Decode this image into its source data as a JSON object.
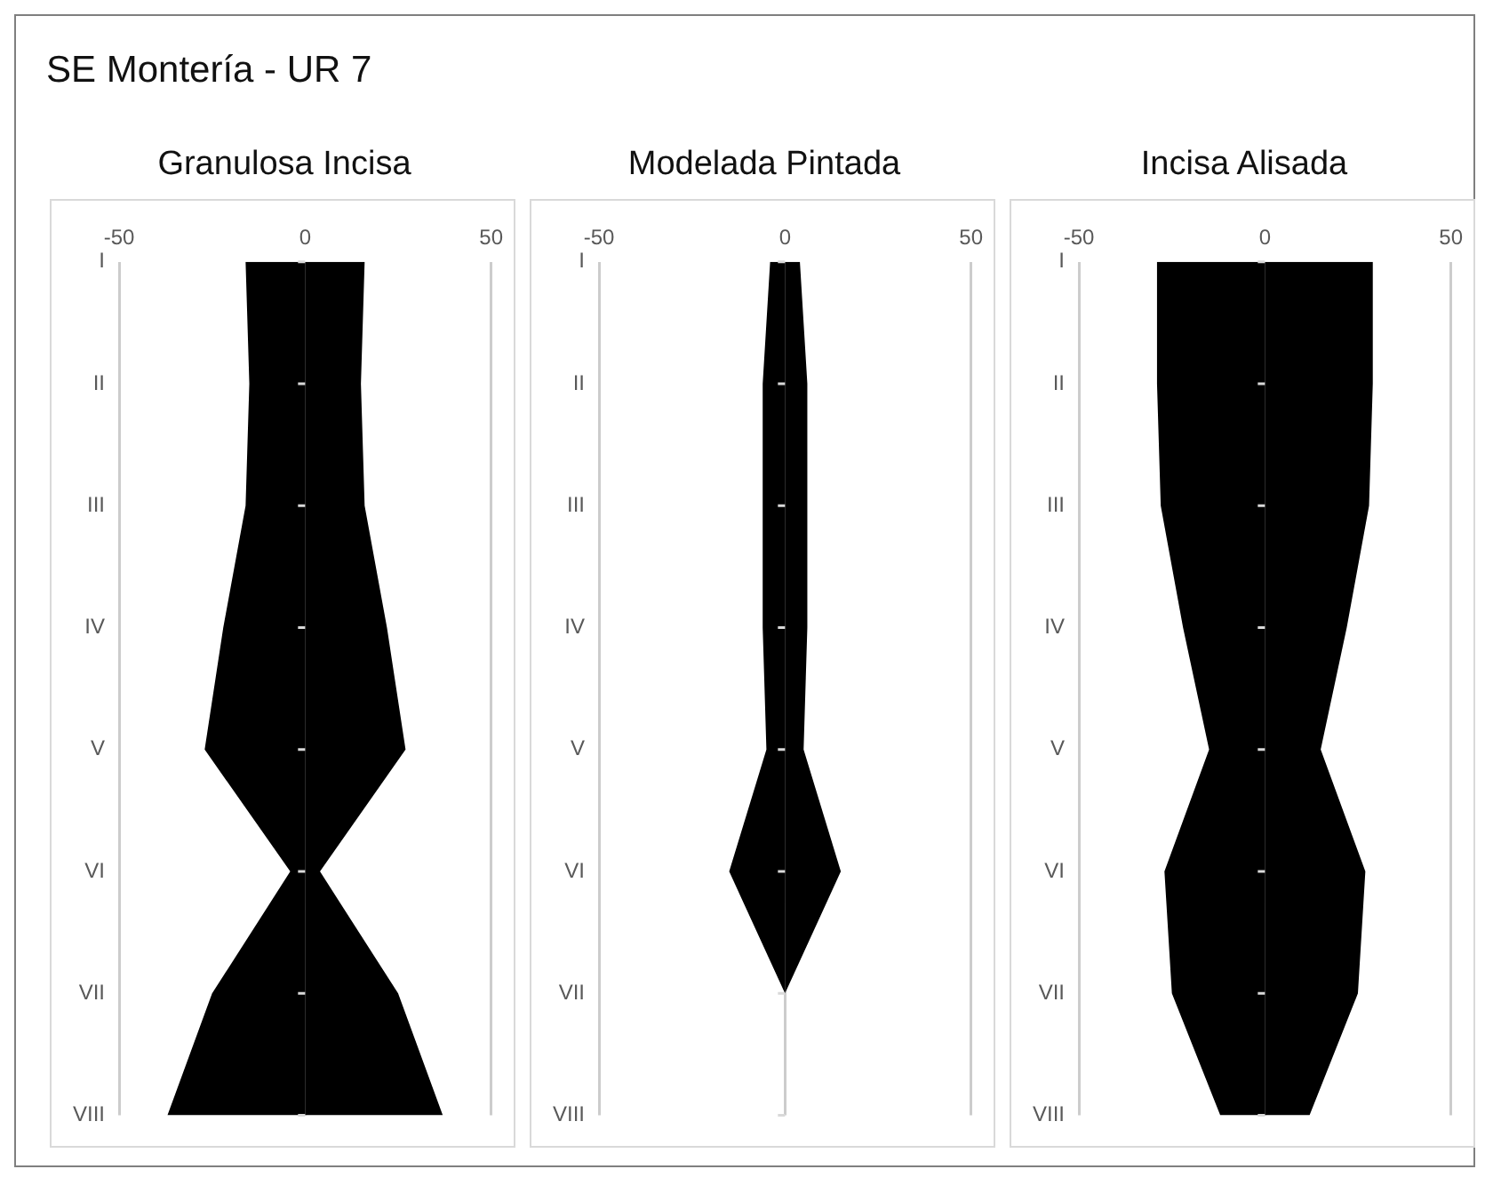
{
  "chart_data": [
    {
      "type": "area",
      "orientation": "horizontal",
      "title": "Granulosa Incisa",
      "annotations": [
        "SE Montería - UR 7"
      ],
      "categories": [
        "I",
        "II",
        "III",
        "IV",
        "V",
        "VI",
        "VII",
        "VIII"
      ],
      "series": [
        {
          "color": "#000000",
          "values": [
            -16,
            -15,
            -16,
            -22,
            -27,
            -4,
            -25,
            -37
          ]
        },
        {
          "color": "#000000",
          "values": [
            16,
            15,
            16,
            22,
            27,
            4,
            25,
            37
          ]
        }
      ],
      "xlim": [
        -50,
        50
      ],
      "xticks": [
        -50,
        0,
        50
      ],
      "grid": "x",
      "legend": false
    },
    {
      "type": "area",
      "orientation": "horizontal",
      "title": "Modelada Pintada",
      "categories": [
        "I",
        "II",
        "III",
        "IV",
        "V",
        "VI",
        "VII",
        "VIII"
      ],
      "series": [
        {
          "color": "#000000",
          "values": [
            -4,
            -6,
            -6,
            -6,
            -5,
            -15,
            0,
            0
          ]
        },
        {
          "color": "#000000",
          "values": [
            4,
            6,
            6,
            6,
            5,
            15,
            0,
            0
          ]
        }
      ],
      "xlim": [
        -50,
        50
      ],
      "xticks": [
        -50,
        0,
        50
      ],
      "grid": "x",
      "legend": false
    },
    {
      "type": "area",
      "orientation": "horizontal",
      "title": "Incisa Alisada",
      "categories": [
        "I",
        "II",
        "III",
        "IV",
        "V",
        "VI",
        "VII",
        "VIII"
      ],
      "series": [
        {
          "color": "#000000",
          "values": [
            -29,
            -29,
            -28,
            -22,
            -15,
            -27,
            -25,
            -12
          ]
        },
        {
          "color": "#000000",
          "values": [
            29,
            29,
            28,
            22,
            15,
            27,
            25,
            12
          ]
        }
      ],
      "xlim": [
        -50,
        50
      ],
      "xticks": [
        -50,
        0,
        50
      ],
      "grid": "x",
      "legend": false
    }
  ]
}
